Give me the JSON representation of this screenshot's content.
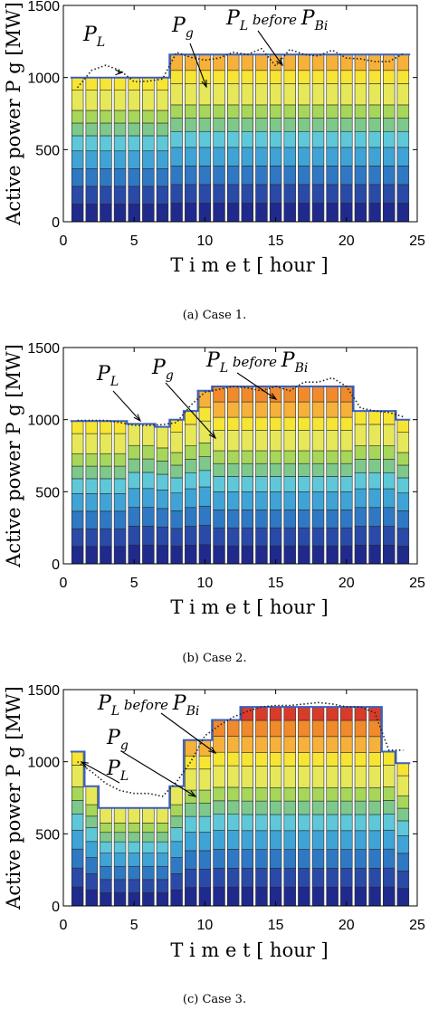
{
  "colors": {
    "stack": [
      "#1f2a8c",
      "#2a4aa8",
      "#2f78c4",
      "#3fa3d6",
      "#5ec8d8",
      "#7dc88a",
      "#a6d65a",
      "#e6e85a",
      "#f7e534",
      "#f6b13a",
      "#f08a2a",
      "#d93b2b"
    ],
    "load_line": "#3a5fbf",
    "dotted_line": "#222222"
  },
  "chart_data": [
    {
      "type": "bar",
      "subtype": "stacked",
      "caption": "(a)  Case 1.",
      "xlabel": "T i m e   t  [ hour ]",
      "ylabel": "Active power  P g  [MW]",
      "xlim": [
        0,
        25
      ],
      "ylim": [
        0,
        1500
      ],
      "xticks": [
        "0",
        "5",
        "10",
        "15",
        "20",
        "25"
      ],
      "yticks": [
        "0",
        "500",
        "1000",
        "1500"
      ],
      "x": [
        1,
        2,
        3,
        4,
        5,
        6,
        7,
        8,
        9,
        10,
        11,
        12,
        13,
        14,
        15,
        16,
        17,
        18,
        19,
        20,
        21,
        22,
        23,
        24
      ],
      "totals": [
        1000,
        1000,
        1000,
        1000,
        1000,
        1000,
        1000,
        1160,
        1160,
        1160,
        1160,
        1160,
        1160,
        1160,
        1160,
        1160,
        1160,
        1160,
        1160,
        1160,
        1160,
        1160,
        1160,
        1160
      ],
      "load_line": [
        1000,
        1000,
        1000,
        1000,
        1000,
        1000,
        1000,
        1160,
        1160,
        1160,
        1160,
        1160,
        1160,
        1160,
        1160,
        1160,
        1160,
        1160,
        1160,
        1160,
        1160,
        1160,
        1160,
        1160
      ],
      "load_before": [
        930,
        1050,
        1085,
        1050,
        970,
        975,
        990,
        1175,
        1140,
        1120,
        1135,
        1175,
        1160,
        1200,
        1080,
        1195,
        1160,
        1150,
        1190,
        1135,
        1130,
        1110,
        1110,
        1165
      ],
      "annotations": [
        {
          "main": "P",
          "sub": "L",
          "mid": ""
        },
        {
          "main": "P",
          "sub": "g",
          "mid": ""
        },
        {
          "main": "P",
          "sub": "L",
          "mid": " before ",
          "main2": "P",
          "sub2": "Bi"
        }
      ]
    },
    {
      "type": "bar",
      "subtype": "stacked",
      "caption": "(b)  Case 2.",
      "xlabel": "T i m e   t  [ hour ]",
      "ylabel": "Active power  P g  [MW]",
      "xlim": [
        0,
        25
      ],
      "ylim": [
        0,
        1500
      ],
      "xticks": [
        "0",
        "5",
        "10",
        "15",
        "20",
        "25"
      ],
      "yticks": [
        "0",
        "500",
        "1000",
        "1500"
      ],
      "x": [
        1,
        2,
        3,
        4,
        5,
        6,
        7,
        8,
        9,
        10,
        11,
        12,
        13,
        14,
        15,
        16,
        17,
        18,
        19,
        20,
        21,
        22,
        23,
        24
      ],
      "totals": [
        990,
        990,
        990,
        990,
        970,
        970,
        950,
        1000,
        1060,
        1200,
        1230,
        1230,
        1230,
        1230,
        1230,
        1230,
        1230,
        1230,
        1230,
        1230,
        1060,
        1060,
        1060,
        1000
      ],
      "load_line": [
        990,
        990,
        990,
        990,
        970,
        970,
        950,
        1000,
        1060,
        1200,
        1230,
        1230,
        1230,
        1230,
        1230,
        1230,
        1230,
        1230,
        1230,
        1230,
        1060,
        1060,
        1060,
        1000
      ],
      "load_before": [
        995,
        995,
        995,
        980,
        960,
        960,
        965,
        980,
        1100,
        1190,
        1210,
        1230,
        1220,
        1200,
        1230,
        1200,
        1260,
        1260,
        1290,
        1230,
        1080,
        1060,
        1050,
        1020
      ],
      "annotations": [
        {
          "main": "P",
          "sub": "L",
          "mid": ""
        },
        {
          "main": "P",
          "sub": "g",
          "mid": ""
        },
        {
          "main": "P",
          "sub": "L",
          "mid": " before ",
          "main2": "P",
          "sub2": "Bi"
        }
      ]
    },
    {
      "type": "bar",
      "subtype": "stacked",
      "caption": "(c)  Case 3.",
      "xlabel": "T i m e   t  [ hour ]",
      "ylabel": "Active power  P g  [MW]",
      "xlim": [
        0,
        25
      ],
      "ylim": [
        0,
        1500
      ],
      "xticks": [
        "0",
        "5",
        "10",
        "15",
        "20",
        "25"
      ],
      "yticks": [
        "0",
        "500",
        "1000",
        "1500"
      ],
      "x": [
        1,
        2,
        3,
        4,
        5,
        6,
        7,
        8,
        9,
        10,
        11,
        12,
        13,
        14,
        15,
        16,
        17,
        18,
        19,
        20,
        21,
        22,
        23,
        24
      ],
      "totals": [
        1070,
        830,
        680,
        680,
        680,
        680,
        680,
        830,
        1150,
        1150,
        1290,
        1290,
        1380,
        1380,
        1380,
        1380,
        1380,
        1380,
        1380,
        1380,
        1380,
        1380,
        1070,
        990
      ],
      "load_line": [
        1070,
        830,
        680,
        680,
        680,
        680,
        680,
        830,
        1150,
        1150,
        1290,
        1290,
        1380,
        1380,
        1380,
        1380,
        1380,
        1380,
        1380,
        1380,
        1380,
        1380,
        1070,
        990
      ],
      "load_before": [
        1000,
        930,
        850,
        800,
        780,
        780,
        760,
        860,
        1000,
        1180,
        1250,
        1310,
        1350,
        1380,
        1390,
        1390,
        1400,
        1410,
        1400,
        1380,
        1380,
        1340,
        1080,
        1080
      ],
      "annotations": [
        {
          "main": "P",
          "sub": "L",
          "mid": " before ",
          "main2": "P",
          "sub2": "Bi"
        },
        {
          "main": "P",
          "sub": "g",
          "mid": ""
        },
        {
          "main": "P",
          "sub": "L",
          "mid": ""
        }
      ]
    }
  ]
}
